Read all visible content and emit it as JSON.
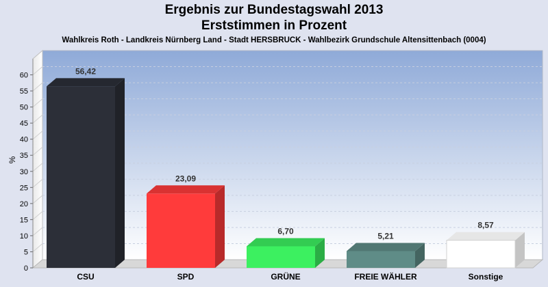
{
  "header": {
    "title": "Ergebnis zur Bundestagswahl 2013",
    "subtitle": "Erststimmen in Prozent",
    "caption": "Wahlkreis Roth - Landkreis Nürnberg Land - Stadt HERSBRUCK - Wahlbezirk Grundschule Altensittenbach (0004)"
  },
  "chart_data": {
    "type": "bar",
    "title": "Ergebnis zur Bundestagswahl 2013",
    "subtitle": "Erststimmen in Prozent",
    "ylabel": "%",
    "xlabel": "",
    "ylim": [
      0,
      65
    ],
    "yticks": [
      0,
      5,
      10,
      15,
      20,
      25,
      30,
      35,
      40,
      45,
      50,
      55,
      60
    ],
    "grid": true,
    "categories": [
      "CSU",
      "SPD",
      "GRÜNE",
      "FREIE WÄHLER",
      "Sonstige"
    ],
    "values": [
      56.42,
      23.09,
      6.7,
      5.21,
      8.57
    ],
    "value_labels": [
      "56,42",
      "23,09",
      "6,70",
      "5,21",
      "8,57"
    ],
    "colors": [
      "#2c2f38",
      "#ff3b3b",
      "#3cf060",
      "#5f8c87",
      "#ffffff"
    ]
  }
}
